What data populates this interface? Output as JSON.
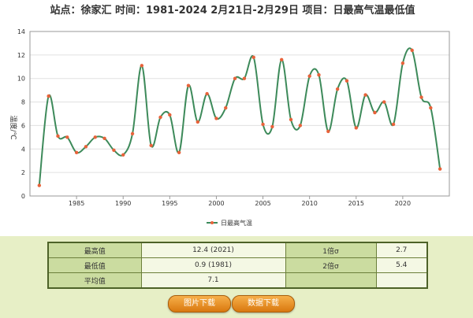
{
  "header": {
    "title": "站点：徐家汇 时间：1981-2024  2月21日-2月29日 项目：日最高气温最低值"
  },
  "chart_data": {
    "type": "line",
    "title": "站点：徐家汇 时间：1981-2024  2月21日-2月29日 项目：日最高气温最低值",
    "ylabel": "温度/℃",
    "xlabel": "",
    "x": [
      1981,
      1982,
      1983,
      1984,
      1985,
      1986,
      1987,
      1988,
      1989,
      1990,
      1991,
      1992,
      1993,
      1994,
      1995,
      1996,
      1997,
      1998,
      1999,
      2000,
      2001,
      2002,
      2003,
      2004,
      2005,
      2006,
      2007,
      2008,
      2009,
      2010,
      2011,
      2012,
      2013,
      2014,
      2015,
      2016,
      2017,
      2018,
      2019,
      2020,
      2021,
      2022,
      2023,
      2024
    ],
    "series": [
      {
        "name": "日最高气温",
        "color": "#3d8a5a",
        "marker_color": "#e8623a",
        "values": [
          0.9,
          8.5,
          5.1,
          5.0,
          3.7,
          4.2,
          5.0,
          4.9,
          3.9,
          3.5,
          5.3,
          11.1,
          4.3,
          6.7,
          6.9,
          3.7,
          9.4,
          6.3,
          8.7,
          6.6,
          7.5,
          10.0,
          10.0,
          11.8,
          6.1,
          5.9,
          11.6,
          6.5,
          6.0,
          10.2,
          10.3,
          5.5,
          9.1,
          9.8,
          5.8,
          8.6,
          7.1,
          8.0,
          6.1,
          11.3,
          12.4,
          8.4,
          7.5,
          2.3
        ]
      }
    ],
    "ylim": [
      0,
      14
    ],
    "yticks": [
      "0",
      "2",
      "4",
      "6",
      "8",
      "10",
      "12",
      "14"
    ],
    "xticks": [
      "1985",
      "1990",
      "1995",
      "2000",
      "2005",
      "2010",
      "2015",
      "2020"
    ],
    "xlim": [
      1980,
      2025
    ],
    "grid": "horizontal",
    "legend_position": "bottom-center"
  },
  "stats": {
    "row1": {
      "label": "最高值",
      "value": "12.4 (2021)",
      "label2": "1倍σ",
      "value2": "2.7"
    },
    "row2": {
      "label": "最低值",
      "value": "0.9 (1981)",
      "label2": "2倍σ",
      "value2": "5.4"
    },
    "row3": {
      "label": "平均值",
      "value": "7.1"
    }
  },
  "buttons": {
    "image_download": "图片下载",
    "data_download": "数据下载"
  }
}
